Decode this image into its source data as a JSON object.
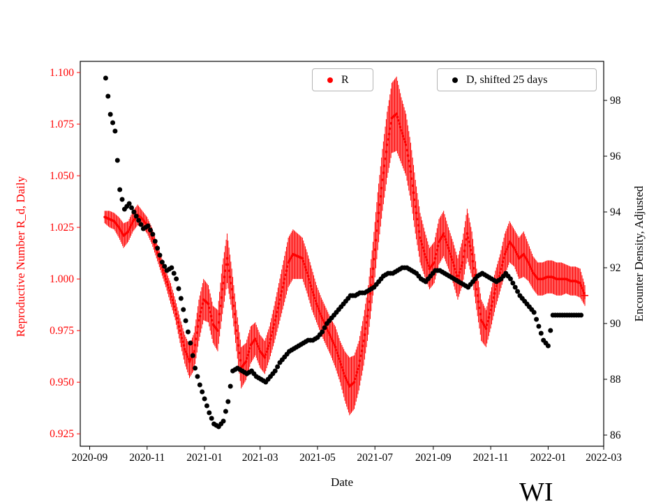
{
  "figure": {
    "background": "#ffffff",
    "corner_label": "WI"
  },
  "chart_data": {
    "type": "scatter",
    "title": "",
    "xlabel": "Date",
    "ylabel_left": "Reproductive Number R_d, Daily",
    "ylabel_right": "Encounter Density, Adjusted",
    "axis_color_left": "#ff0000",
    "axis_color_right": "#000000",
    "grid": false,
    "x_ticks": [
      "2020-09",
      "2020-11",
      "2021-01",
      "2021-03",
      "2021-05",
      "2021-07",
      "2021-09",
      "2021-11",
      "2022-01",
      "2022-03"
    ],
    "y_ticks_left": [
      "0.925",
      "0.950",
      "0.975",
      "1.000",
      "1.025",
      "1.050",
      "1.075",
      "1.100"
    ],
    "y_ticks_right": [
      "86",
      "88",
      "90",
      "92",
      "94",
      "96",
      "98"
    ],
    "xlim": [
      "2020-08-22",
      "2022-03-01"
    ],
    "ylim_left": [
      0.919,
      1.1054
    ],
    "ylim_right": [
      85.6,
      99.4
    ],
    "legend": [
      {
        "label": "R",
        "color": "#ff0000",
        "marker": "circle"
      },
      {
        "label": "D, shifted 25 days",
        "color": "#000000",
        "marker": "circle"
      }
    ],
    "series": [
      {
        "name": "R",
        "axis": "left",
        "color": "#ff0000",
        "marker": "point_with_errorbar",
        "last_marker": "plus",
        "start_date": "2020-09-17",
        "step_days": 5,
        "values": [
          1.03,
          1.029,
          1.028,
          1.025,
          1.021,
          1.023,
          1.028,
          1.031,
          1.029,
          1.026,
          1.021,
          1.014,
          1.007,
          1.0,
          0.993,
          0.985,
          0.975,
          0.966,
          0.96,
          0.965,
          0.98,
          0.99,
          0.988,
          0.978,
          0.975,
          0.995,
          1.01,
          0.995,
          0.975,
          0.957,
          0.96,
          0.968,
          0.971,
          0.965,
          0.962,
          0.969,
          0.978,
          0.988,
          0.998,
          1.008,
          1.012,
          1.011,
          1.01,
          1.003,
          0.995,
          0.988,
          0.982,
          0.977,
          0.972,
          0.967,
          0.96,
          0.953,
          0.948,
          0.95,
          0.958,
          0.97,
          0.985,
          1.005,
          1.028,
          1.048,
          1.065,
          1.078,
          1.08,
          1.072,
          1.065,
          1.052,
          1.035,
          1.02,
          1.012,
          1.005,
          1.008,
          1.018,
          1.022,
          1.015,
          1.008,
          1.0,
          1.008,
          1.022,
          1.012,
          0.995,
          0.98,
          0.976,
          0.985,
          0.995,
          1.003,
          1.012,
          1.018,
          1.015,
          1.01,
          1.012,
          1.008,
          1.003,
          1.0,
          1.0,
          1.001,
          1.001,
          1.0,
          1.0,
          1.0,
          0.999,
          0.999,
          0.998,
          0.992
        ],
        "errors": [
          0.003,
          0.004,
          0.004,
          0.005,
          0.006,
          0.005,
          0.005,
          0.005,
          0.004,
          0.004,
          0.004,
          0.004,
          0.004,
          0.004,
          0.005,
          0.005,
          0.006,
          0.007,
          0.008,
          0.009,
          0.01,
          0.01,
          0.009,
          0.009,
          0.01,
          0.012,
          0.012,
          0.01,
          0.01,
          0.01,
          0.009,
          0.009,
          0.008,
          0.008,
          0.008,
          0.008,
          0.009,
          0.01,
          0.011,
          0.012,
          0.012,
          0.011,
          0.01,
          0.01,
          0.01,
          0.009,
          0.009,
          0.009,
          0.009,
          0.01,
          0.01,
          0.012,
          0.014,
          0.013,
          0.012,
          0.012,
          0.012,
          0.013,
          0.014,
          0.015,
          0.016,
          0.017,
          0.018,
          0.016,
          0.015,
          0.014,
          0.013,
          0.012,
          0.011,
          0.01,
          0.01,
          0.011,
          0.011,
          0.01,
          0.01,
          0.01,
          0.011,
          0.012,
          0.011,
          0.01,
          0.01,
          0.009,
          0.009,
          0.009,
          0.009,
          0.01,
          0.01,
          0.009,
          0.01,
          0.011,
          0.009,
          0.008,
          0.008,
          0.008,
          0.008,
          0.008,
          0.008,
          0.008,
          0.007,
          0.007,
          0.007,
          0.007,
          0.005
        ]
      },
      {
        "name": "D, shifted 25 days",
        "axis": "right",
        "color": "#000000",
        "marker": "point",
        "start_date": "2020-09-18",
        "step_days": 5,
        "values": [
          98.8,
          97.5,
          96.9,
          94.8,
          94.1,
          94.3,
          94.0,
          93.7,
          93.4,
          93.5,
          93.2,
          92.7,
          92.2,
          91.9,
          92.0,
          91.6,
          90.9,
          90.1,
          89.3,
          88.4,
          87.8,
          87.3,
          86.8,
          86.4,
          86.3,
          86.5,
          87.2,
          88.3,
          88.4,
          88.3,
          88.2,
          88.3,
          88.1,
          88.0,
          87.9,
          88.1,
          88.3,
          88.6,
          88.8,
          89.0,
          89.1,
          89.2,
          89.3,
          89.4,
          89.4,
          89.5,
          89.7,
          90.0,
          90.2,
          90.4,
          90.6,
          90.8,
          91.0,
          91.0,
          91.1,
          91.1,
          91.2,
          91.3,
          91.5,
          91.7,
          91.8,
          91.8,
          91.9,
          92.0,
          92.0,
          91.9,
          91.8,
          91.6,
          91.5,
          91.7,
          91.9,
          91.9,
          91.8,
          91.7,
          91.6,
          91.5,
          91.4,
          91.3,
          91.5,
          91.7,
          91.8,
          91.7,
          91.6,
          91.5,
          91.6,
          91.8,
          91.6,
          91.3,
          91.0,
          90.8,
          90.6,
          90.4,
          89.9,
          89.4,
          89.2,
          90.3,
          90.3,
          90.3,
          90.3,
          90.3,
          90.3,
          90.3
        ]
      }
    ]
  }
}
